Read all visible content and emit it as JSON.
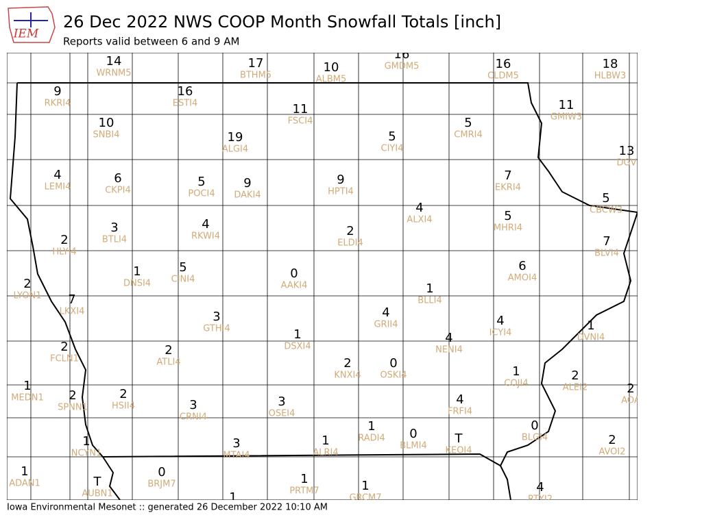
{
  "header": {
    "logo_text": "IEM",
    "title": "26 Dec 2022 NWS COOP Month Snowfall Totals [inch]",
    "subtitle": "Reports valid between 6 and 9 AM"
  },
  "footer": "Iowa Environmental Mesonet :: generated 26 December 2022 10:10 AM",
  "stations": [
    {
      "value": 14,
      "id": "WRNM5"
    },
    {
      "value": 17,
      "id": "BTHM5"
    },
    {
      "value": 10,
      "id": "ALBM5"
    },
    {
      "value": 16,
      "id": "GMDM5"
    },
    {
      "value": 16,
      "id": "CLDM5"
    },
    {
      "value": 18,
      "id": "HLBW3"
    },
    {
      "value": 9,
      "id": "RKRI4"
    },
    {
      "value": 16,
      "id": "ESTI4"
    },
    {
      "value": 11,
      "id": "FSCI4"
    },
    {
      "value": 11,
      "id": "GMIW3"
    },
    {
      "value": 10,
      "id": "SNBI4"
    },
    {
      "value": 19,
      "id": "ALGI4"
    },
    {
      "value": 5,
      "id": "CIYI4"
    },
    {
      "value": 5,
      "id": "CMRI4"
    },
    {
      "value": 13,
      "id": "DGV"
    },
    {
      "value": 4,
      "id": "LEMI4"
    },
    {
      "value": 6,
      "id": "CKPI4"
    },
    {
      "value": 5,
      "id": "POCI4"
    },
    {
      "value": 9,
      "id": "DAKI4"
    },
    {
      "value": 9,
      "id": "HPTI4"
    },
    {
      "value": 7,
      "id": "EKRI4"
    },
    {
      "value": 5,
      "id": "CBCW3"
    },
    {
      "value": 4,
      "id": "ALXI4"
    },
    {
      "value": 5,
      "id": "MHRI4"
    },
    {
      "value": 3,
      "id": "BTLI4"
    },
    {
      "value": 4,
      "id": "RKWI4"
    },
    {
      "value": 2,
      "id": "ELDI4"
    },
    {
      "value": 2,
      "id": "HLYI4"
    },
    {
      "value": 7,
      "id": "BLVI4"
    },
    {
      "value": 1,
      "id": "DNSI4"
    },
    {
      "value": 5,
      "id": "CINI4"
    },
    {
      "value": 0,
      "id": "AAKI4"
    },
    {
      "value": 6,
      "id": "AMOI4"
    },
    {
      "value": 2,
      "id": "LYON1"
    },
    {
      "value": 7,
      "id": "LKXI4"
    },
    {
      "value": 1,
      "id": "BLLI4"
    },
    {
      "value": 3,
      "id": "GTHI4"
    },
    {
      "value": 4,
      "id": "GRII4"
    },
    {
      "value": 4,
      "id": "ICYI4"
    },
    {
      "value": 1,
      "id": "DVNI4"
    },
    {
      "value": 1,
      "id": "DSXI4"
    },
    {
      "value": 4,
      "id": "NENI4"
    },
    {
      "value": 2,
      "id": "FCLN1"
    },
    {
      "value": 2,
      "id": "ATLI4"
    },
    {
      "value": 2,
      "id": "KNXI4"
    },
    {
      "value": 0,
      "id": "OSKI4"
    },
    {
      "value": 1,
      "id": "COJI4"
    },
    {
      "value": 2,
      "id": "ALEI2"
    },
    {
      "value": 2,
      "id": "AOA"
    },
    {
      "value": 1,
      "id": "MEDN1"
    },
    {
      "value": 2,
      "id": "SPNN1"
    },
    {
      "value": 2,
      "id": "HSII4"
    },
    {
      "value": 3,
      "id": "CRNI4"
    },
    {
      "value": 3,
      "id": "OSEI4"
    },
    {
      "value": 4,
      "id": "FRFI4"
    },
    {
      "value": 0,
      "id": "BLGI4"
    },
    {
      "value": 1,
      "id": "RADI4"
    },
    {
      "value": 0,
      "id": "BLMI4"
    },
    {
      "value": "T",
      "id": "KEOI4"
    },
    {
      "value": 1,
      "id": "ALRI4"
    },
    {
      "value": 3,
      "id": "MTAI4"
    },
    {
      "value": 1,
      "id": "NCYN1"
    },
    {
      "value": 2,
      "id": "AVOI2"
    },
    {
      "value": 1,
      "id": "ADAN1"
    },
    {
      "value": "T",
      "id": "AUBN1"
    },
    {
      "value": 0,
      "id": "BRJM7"
    },
    {
      "value": 1,
      "id": "PRTM7"
    },
    {
      "value": 1,
      "id": "GRCM7"
    },
    {
      "value": 1
    },
    {
      "value": 4,
      "id": "RTYI2"
    }
  ]
}
